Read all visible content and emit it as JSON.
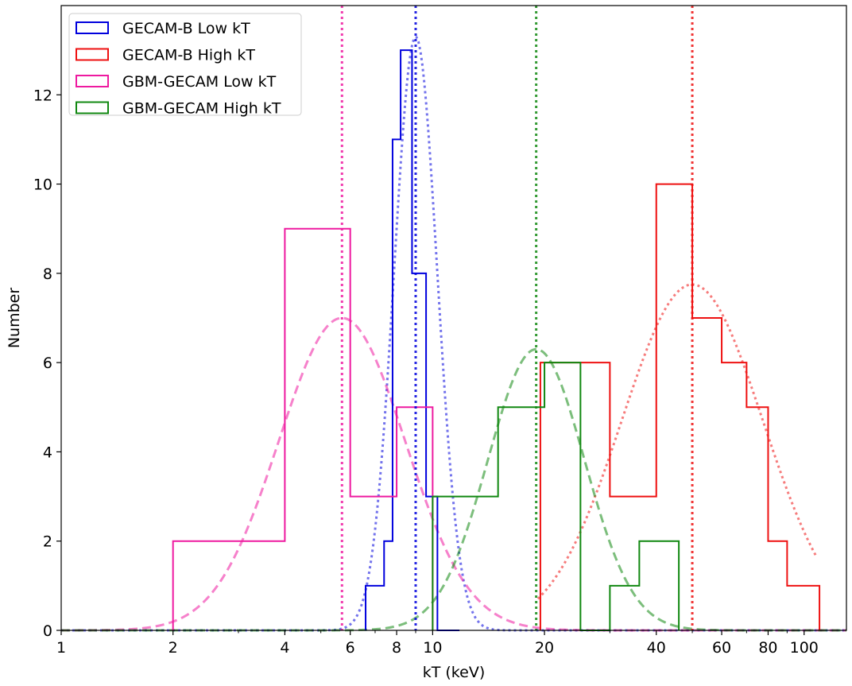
{
  "chart_data": {
    "type": "histogram",
    "xlabel": "kT (keV)",
    "ylabel": "Number",
    "xscale": "log",
    "xlim": [
      1,
      130
    ],
    "ylim": [
      0,
      14
    ],
    "xticks": [
      {
        "v": 1,
        "label": "1"
      },
      {
        "v": 2,
        "label": "2"
      },
      {
        "v": 4,
        "label": "4"
      },
      {
        "v": 6,
        "label": "6"
      },
      {
        "v": 8,
        "label": "8"
      },
      {
        "v": 10,
        "label": "10"
      },
      {
        "v": 20,
        "label": "20"
      },
      {
        "v": 40,
        "label": "40"
      },
      {
        "v": 60,
        "label": "60"
      },
      {
        "v": 80,
        "label": "80"
      },
      {
        "v": 100,
        "label": "100"
      }
    ],
    "yticks": [
      0,
      2,
      4,
      6,
      8,
      10,
      12
    ],
    "legend_position": "top-left",
    "series": [
      {
        "name": "GECAM-B Low kT",
        "color": "#0000dd",
        "edges": [
          6.6,
          7.4,
          7.8,
          8.2,
          8.8,
          9.6,
          10.3,
          11.8
        ],
        "counts": [
          1,
          2,
          11,
          13,
          8,
          3,
          0
        ],
        "fit": {
          "style": "dotted",
          "mu": 9.0,
          "sigma": 0.058,
          "amp": 13.3
        },
        "median": 9.0
      },
      {
        "name": "GECAM-B High kT",
        "color": "#ee1111",
        "edges": [
          19.5,
          30,
          40,
          50,
          60,
          70,
          80,
          90,
          110
        ],
        "counts": [
          6,
          3,
          10,
          7,
          6,
          5,
          2,
          1
        ],
        "fit": {
          "style": "dotted",
          "mu": 50.0,
          "sigma": 0.19,
          "amp": 7.75,
          "xmin": 19.2,
          "xmax": 108
        },
        "median": 50.0
      },
      {
        "name": "GBM-GECAM Low kT",
        "color": "#ee1aa0",
        "edges": [
          2,
          4,
          6,
          8,
          10
        ],
        "counts": [
          2,
          9,
          3,
          5
        ],
        "fit": {
          "style": "dashed",
          "mu": 5.7,
          "sigma": 0.17,
          "amp": 7.0
        },
        "median": 5.7
      },
      {
        "name": "GBM-GECAM High kT",
        "color": "#118811",
        "edges": [
          10,
          15,
          20,
          25,
          30,
          36,
          46
        ],
        "counts": [
          3,
          5,
          6,
          0,
          1,
          2
        ],
        "fit": {
          "style": "dashed",
          "mu": 19.0,
          "sigma": 0.13,
          "amp": 6.3
        },
        "median": 19.0
      }
    ]
  }
}
